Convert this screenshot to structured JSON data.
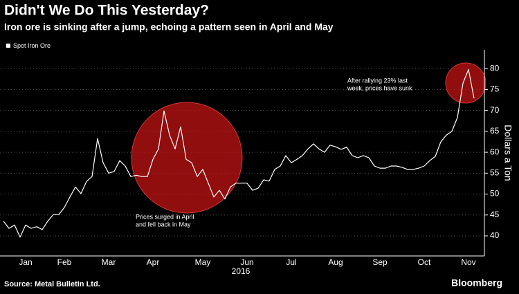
{
  "chart_data": {
    "type": "line",
    "title": "Didn't We Do This Yesterday?",
    "subtitle": "Iron ore is sinking after a jump, echoing a pattern seen in April and May",
    "x_label": "2016",
    "y_label": "Dollars a Ton",
    "source": "Source: Metal Bulletin Ltd.",
    "brand": "Bloomberg",
    "legend_position": "top-left",
    "grid": true,
    "annotations": [
      {
        "lines": [
          "Prices surged in April",
          "and fell back in May"
        ]
      },
      {
        "lines": [
          "After rallying 23% last",
          "week, prices have sunk"
        ]
      }
    ],
    "categories": [
      null,
      null,
      null,
      null,
      "Jan",
      null,
      null,
      null,
      null,
      null,
      null,
      "Feb",
      null,
      null,
      null,
      null,
      null,
      null,
      null,
      "Mar",
      null,
      null,
      null,
      null,
      null,
      null,
      null,
      "Apr",
      null,
      null,
      null,
      null,
      null,
      null,
      null,
      null,
      "May",
      null,
      null,
      null,
      null,
      null,
      null,
      null,
      "Jun",
      null,
      null,
      null,
      null,
      null,
      null,
      null,
      "Jul",
      null,
      null,
      null,
      null,
      null,
      null,
      null,
      "Aug",
      null,
      null,
      null,
      null,
      null,
      null,
      null,
      "Sep",
      null,
      null,
      null,
      null,
      null,
      null,
      null,
      "Oct",
      null,
      null,
      null,
      null,
      null,
      null,
      null,
      "Nov",
      null
    ],
    "series": [
      {
        "name": "Spot Iron Ore",
        "color": "#ffffff",
        "values": [
          43.5,
          41.8,
          42.6,
          39.7,
          42.6,
          41.8,
          42.2,
          41.5,
          43.5,
          45.1,
          45.1,
          46.8,
          49.3,
          51.7,
          50.1,
          53,
          54.2,
          63.3,
          57.5,
          55,
          55.4,
          58,
          56.7,
          54.2,
          54.5,
          54.2,
          54.2,
          58.3,
          60.8,
          69.9,
          64.1,
          60.8,
          66.1,
          58.3,
          57.5,
          54.2,
          55.9,
          52.6,
          49.3,
          50.9,
          48.8,
          51.7,
          52.6,
          52.6,
          52.6,
          50.9,
          51.4,
          53.4,
          53.1,
          55.9,
          56.7,
          59.2,
          57.5,
          58.3,
          59.2,
          60.8,
          62,
          60.8,
          60,
          61.7,
          61.3,
          60.7,
          61.2,
          59.2,
          58.7,
          59.2,
          58.7,
          56.7,
          56.2,
          56.2,
          56.7,
          56.7,
          56.4,
          55.9,
          55.9,
          56.2,
          56.7,
          58,
          59,
          62.5,
          64.1,
          65,
          68.3,
          76.5,
          79.8,
          72.9
        ]
      }
    ],
    "ylim": [
      35.2,
      84.5
    ],
    "yticks": [
      40,
      45,
      50,
      55,
      60,
      65,
      70,
      75,
      80
    ]
  }
}
